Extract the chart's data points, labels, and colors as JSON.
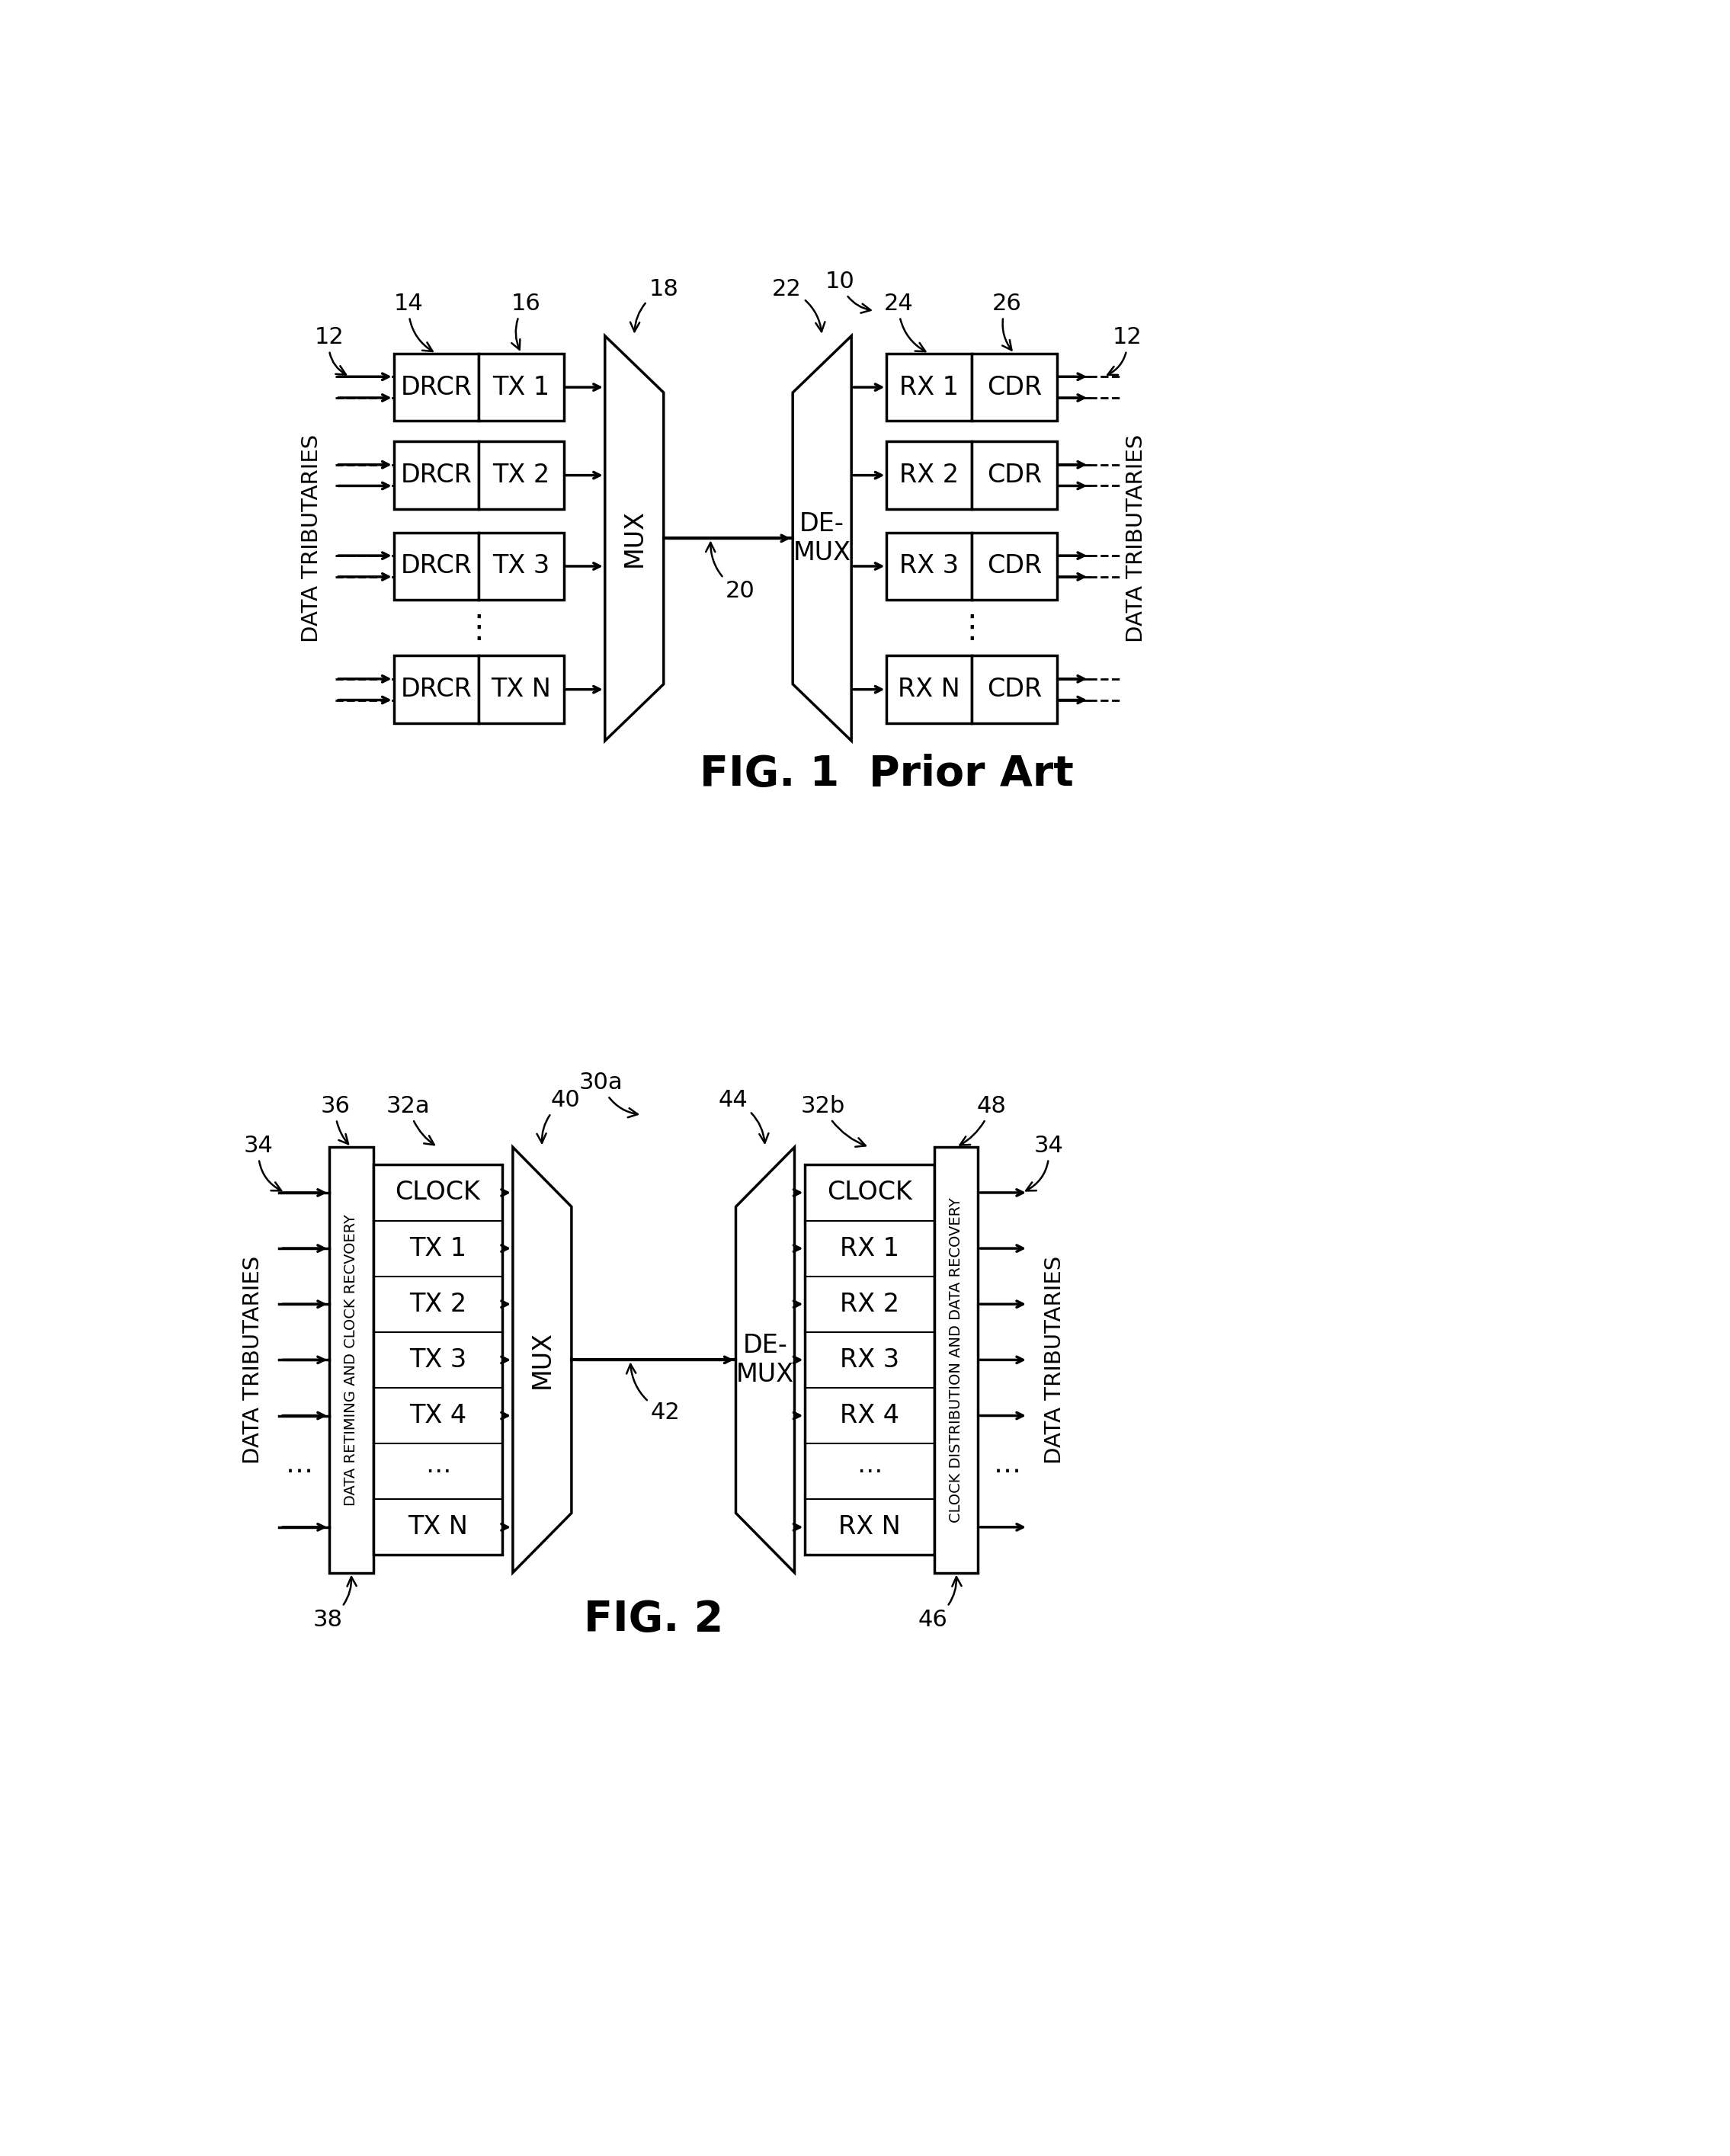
{
  "fig1": {
    "caption": "FIG. 1  Prior Art",
    "ref_10": "10",
    "ref_12l": "12",
    "ref_12r": "12",
    "ref_14": "14",
    "ref_16": "16",
    "ref_18": "18",
    "ref_20": "20",
    "ref_22": "22",
    "ref_24": "24",
    "ref_26": "26",
    "left_label": "DATA TRIBUTARIES",
    "right_label": "DATA TRIBUTARIES",
    "tx_rows": [
      "TX 1",
      "TX 2",
      "TX 3",
      "TX N"
    ],
    "rx_rows": [
      "RX 1",
      "RX 2",
      "RX 3",
      "RX N"
    ],
    "drcr_text": "DRCR",
    "cdr_text": "CDR",
    "mux_text": "MUX",
    "demux_text": "DE-\nMUX"
  },
  "fig2": {
    "caption": "FIG. 2",
    "ref_30a": "30a",
    "ref_34l": "34",
    "ref_34r": "34",
    "ref_36": "36",
    "ref_32a": "32a",
    "ref_38": "38",
    "ref_40": "40",
    "ref_42": "42",
    "ref_44": "44",
    "ref_32b": "32b",
    "ref_46": "46",
    "ref_48": "48",
    "left_label": "DATA TRIBUTARIES",
    "right_label": "DATA TRIBUTARIES",
    "left_rot_text": "DATA RETIMING AND CLOCK RECVOERY",
    "right_rot_text": "CLOCK DISTRIBUTION AND DATA RECOVERY",
    "left_rows": [
      "CLOCK",
      "TX 1",
      "TX 2",
      "TX 3",
      "TX 4",
      "⋯",
      "TX N"
    ],
    "right_rows": [
      "CLOCK",
      "RX 1",
      "RX 2",
      "RX 3",
      "RX 4",
      "⋯",
      "RX N"
    ],
    "mux_text": "MUX",
    "demux_text": "DE-\nMUX"
  },
  "bg_color": "#ffffff",
  "line_color": "#000000"
}
